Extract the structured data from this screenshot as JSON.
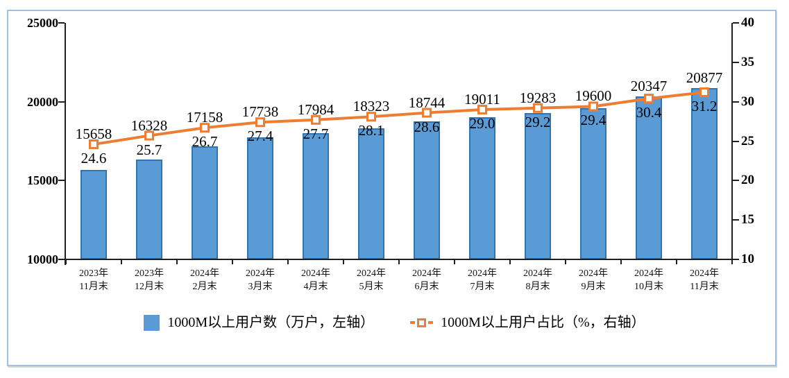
{
  "frame": {
    "border_color": "#9DC3E6"
  },
  "chart_data": {
    "type": "bar",
    "combo": "bar+line dual axis",
    "categories": [
      "2023年11月末",
      "2023年12月末",
      "2024年2月末",
      "2024年3月末",
      "2024年4月末",
      "2024年5月末",
      "2024年6月末",
      "2024年7月末",
      "2024年8月末",
      "2024年9月末",
      "2024年10月末",
      "2024年11月末"
    ],
    "category_lines": [
      [
        "2023年",
        "11月末"
      ],
      [
        "2023年",
        "12月末"
      ],
      [
        "2024年",
        "2月末"
      ],
      [
        "2024年",
        "3月末"
      ],
      [
        "2024年",
        "4月末"
      ],
      [
        "2024年",
        "5月末"
      ],
      [
        "2024年",
        "6月末"
      ],
      [
        "2024年",
        "7月末"
      ],
      [
        "2024年",
        "8月末"
      ],
      [
        "2024年",
        "9月末"
      ],
      [
        "2024年",
        "10月末"
      ],
      [
        "2024年",
        "11月末"
      ]
    ],
    "series": [
      {
        "name": "1000M以上用户数（万户，左轴）",
        "type": "bar",
        "axis": "left",
        "color": "#5B9BD5",
        "border_color": "#2E75B6",
        "values": [
          15658,
          16328,
          17158,
          17738,
          17984,
          18323,
          18744,
          19011,
          19283,
          19600,
          20347,
          20877
        ],
        "labels": [
          "15658",
          "16328",
          "17158",
          "17738",
          "17984",
          "18323",
          "18744",
          "19011",
          "19283",
          "19600",
          "20347",
          "20877"
        ]
      },
      {
        "name": "1000M以上用户占比（%，右轴）",
        "type": "line",
        "axis": "right",
        "color": "#ED7D31",
        "marker": "square-white-fill",
        "values": [
          24.6,
          25.7,
          26.7,
          27.4,
          27.7,
          28.1,
          28.6,
          29.0,
          29.2,
          29.4,
          30.4,
          31.2
        ],
        "labels": [
          "24.6",
          "25.7",
          "26.7",
          "27.4",
          "27.7",
          "28.1",
          "28.6",
          "29.0",
          "29.2",
          "29.4",
          "30.4",
          "31.2"
        ]
      }
    ],
    "left_axis": {
      "min": 10000,
      "max": 25000,
      "step": 5000,
      "ticks": [
        "10000",
        "15000",
        "20000",
        "25000"
      ]
    },
    "right_axis": {
      "min": 10,
      "max": 40,
      "step": 5,
      "ticks": [
        "10",
        "15",
        "20",
        "25",
        "30",
        "35",
        "40"
      ]
    },
    "legend_position": "bottom",
    "grid": false,
    "title": ""
  }
}
